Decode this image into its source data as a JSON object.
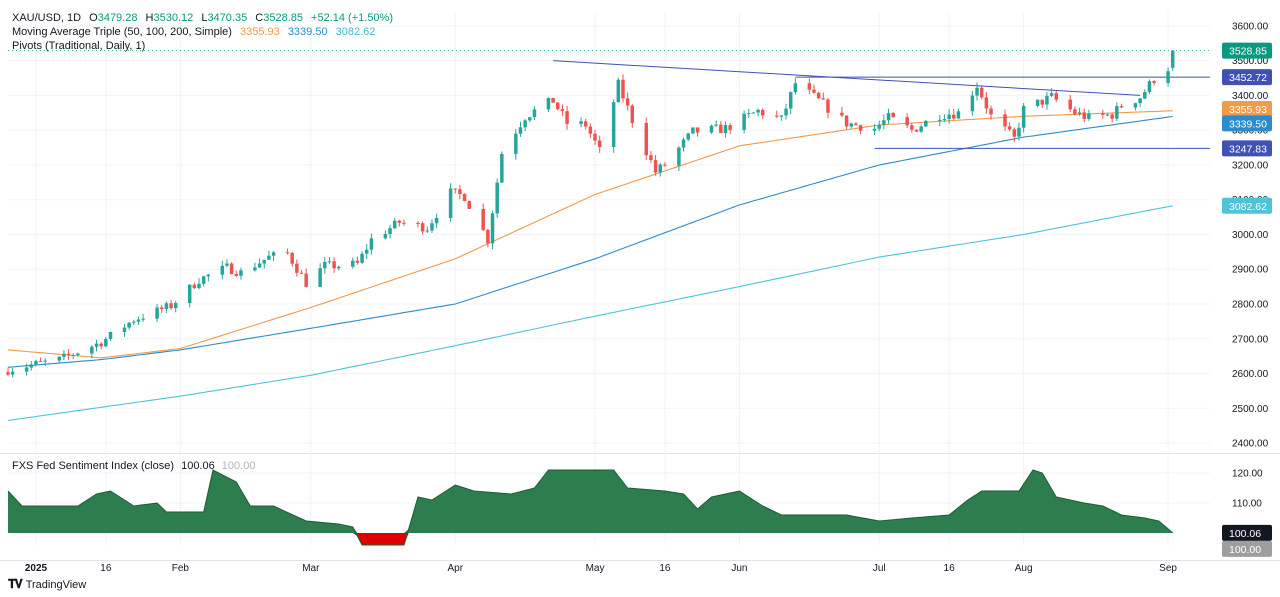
{
  "header": {
    "symbol": "XAU/USD, 1D",
    "o_label": "O",
    "o_value": "3479.28",
    "h_label": "H",
    "h_value": "3530.12",
    "l_label": "L",
    "l_value": "3470.35",
    "c_label": "C",
    "c_value": "3528.85",
    "change": "+52.14 (+1.50%)",
    "ma_title": "Moving Average Triple (50, 100, 200, Simple)",
    "ma50_value": "3355.93",
    "ma100_value": "3339.50",
    "ma200_value": "3082.62",
    "pivots_title": "Pivots (Traditional, Daily, 1)"
  },
  "subpanel": {
    "title": "FXS Fed Sentiment Index (close)",
    "value": "100.06",
    "ghost_value": "100.00"
  },
  "brand": {
    "name": "TradingView",
    "icon": "tradingview-logo-icon"
  },
  "colors": {
    "up": "#26a69a",
    "down": "#ef5350",
    "ma50": "#f2994a",
    "ma100": "#2b8ccc",
    "ma200": "#4fc3d9",
    "trendline": "#3f51b5",
    "sentiment_fill": "#2e7d4f",
    "sentiment_neg": "#e00000",
    "last_price": "#089981"
  },
  "price_labels": {
    "last": "3528.85",
    "resistance": "3452.72",
    "ma50": "3355.93",
    "ma100": "3339.50",
    "support": "3247.83",
    "ma200": "3082.62"
  },
  "chart_data": [
    {
      "type": "candlestick",
      "title": "XAU/USD, 1D",
      "ylim": [
        2380,
        3640
      ],
      "y_ticks": [
        2400,
        2500,
        2600,
        2700,
        2800,
        2900,
        3000,
        3100,
        3200,
        3300,
        3400,
        3500,
        3600
      ],
      "y_tick_labels": [
        "2400.00",
        "2500.00",
        "2600.00",
        "2700.00",
        "2800.00",
        "2900.00",
        "3000.00",
        "3100.00",
        "3200.00",
        "3300.00",
        "3400.00",
        "3500.00",
        "3600.00"
      ],
      "x_range": [
        "2024-12-26",
        "2025-09-10"
      ],
      "x_ticks": [
        "2025-01-01",
        "2025-01-16",
        "2025-02-01",
        "2025-03-01",
        "2025-04-01",
        "2025-05-01",
        "2025-05-16",
        "2025-06-01",
        "2025-07-01",
        "2025-07-16",
        "2025-08-01",
        "2025-09-01"
      ],
      "x_tick_labels": [
        "2025",
        "16",
        "Feb",
        "Mar",
        "Apr",
        "May",
        "16",
        "Jun",
        "Jul",
        "16",
        "Aug",
        "Sep"
      ],
      "close_anchors": [
        [
          "2024-12-26",
          2610
        ],
        [
          "2024-12-31",
          2625
        ],
        [
          "2025-01-06",
          2640
        ],
        [
          "2025-01-15",
          2690
        ],
        [
          "2025-01-22",
          2755
        ],
        [
          "2025-01-30",
          2795
        ],
        [
          "2025-02-05",
          2870
        ],
        [
          "2025-02-11",
          2905
        ],
        [
          "2025-02-14",
          2890
        ],
        [
          "2025-02-20",
          2935
        ],
        [
          "2025-02-24",
          2945
        ],
        [
          "2025-02-28",
          2860
        ],
        [
          "2025-03-04",
          2910
        ],
        [
          "2025-03-07",
          2910
        ],
        [
          "2025-03-11",
          2915
        ],
        [
          "2025-03-14",
          2985
        ],
        [
          "2025-03-20",
          3035
        ],
        [
          "2025-03-26",
          3020
        ],
        [
          "2025-03-31",
          3120
        ],
        [
          "2025-04-03",
          3110
        ],
        [
          "2025-04-08",
          2985
        ],
        [
          "2025-04-11",
          3235
        ],
        [
          "2025-04-16",
          3340
        ],
        [
          "2025-04-22",
          3385
        ],
        [
          "2025-04-25",
          3320
        ],
        [
          "2025-04-29",
          3315
        ],
        [
          "2025-05-02",
          3240
        ],
        [
          "2025-05-06",
          3430
        ],
        [
          "2025-05-09",
          3330
        ],
        [
          "2025-05-14",
          3180
        ],
        [
          "2025-05-16",
          3200
        ],
        [
          "2025-05-22",
          3295
        ],
        [
          "2025-05-29",
          3305
        ],
        [
          "2025-06-05",
          3355
        ],
        [
          "2025-06-10",
          3330
        ],
        [
          "2025-06-13",
          3435
        ],
        [
          "2025-06-18",
          3385
        ],
        [
          "2025-06-24",
          3320
        ],
        [
          "2025-06-30",
          3305
        ],
        [
          "2025-07-03",
          3335
        ],
        [
          "2025-07-08",
          3300
        ],
        [
          "2025-07-14",
          3345
        ],
        [
          "2025-07-18",
          3350
        ],
        [
          "2025-07-22",
          3430
        ],
        [
          "2025-07-25",
          3340
        ],
        [
          "2025-07-30",
          3275
        ],
        [
          "2025-08-01",
          3360
        ],
        [
          "2025-08-07",
          3395
        ],
        [
          "2025-08-12",
          3350
        ],
        [
          "2025-08-15",
          3335
        ],
        [
          "2025-08-20",
          3345
        ],
        [
          "2025-08-22",
          3370
        ],
        [
          "2025-08-26",
          3395
        ],
        [
          "2025-08-29",
          3448
        ],
        [
          "2025-09-01",
          3479.28
        ],
        [
          "2025-09-02",
          3528.85
        ]
      ],
      "last_bar": {
        "date": "2025-09-02",
        "open": 3479.28,
        "high": 3530.12,
        "low": 3470.35,
        "close": 3528.85
      },
      "series": [
        {
          "name": "SMA 50",
          "values": [
            [
              "2024-12-26",
              2668
            ],
            [
              "2025-01-15",
              2645
            ],
            [
              "2025-02-01",
              2672
            ],
            [
              "2025-03-01",
              2790
            ],
            [
              "2025-04-01",
              2930
            ],
            [
              "2025-05-01",
              3115
            ],
            [
              "2025-06-01",
              3255
            ],
            [
              "2025-07-01",
              3315
            ],
            [
              "2025-08-01",
              3340
            ],
            [
              "2025-09-02",
              3355.93
            ]
          ]
        },
        {
          "name": "SMA 100",
          "values": [
            [
              "2024-12-26",
              2618
            ],
            [
              "2025-01-15",
              2640
            ],
            [
              "2025-02-01",
              2668
            ],
            [
              "2025-03-01",
              2730
            ],
            [
              "2025-04-01",
              2800
            ],
            [
              "2025-05-01",
              2930
            ],
            [
              "2025-06-01",
              3085
            ],
            [
              "2025-07-01",
              3200
            ],
            [
              "2025-08-01",
              3280
            ],
            [
              "2025-09-02",
              3339.5
            ]
          ]
        },
        {
          "name": "SMA 200",
          "values": [
            [
              "2024-12-26",
              2465
            ],
            [
              "2025-02-01",
              2535
            ],
            [
              "2025-03-01",
              2595
            ],
            [
              "2025-04-01",
              2680
            ],
            [
              "2025-05-01",
              2765
            ],
            [
              "2025-06-01",
              2850
            ],
            [
              "2025-07-01",
              2935
            ],
            [
              "2025-08-01",
              3000
            ],
            [
              "2025-09-02",
              3082.62
            ]
          ]
        }
      ],
      "trendlines": [
        {
          "name": "descending-trendline",
          "points": [
            [
              "2025-04-22",
              3500
            ],
            [
              "2025-08-26",
              3400
            ]
          ]
        },
        {
          "name": "resistance-line",
          "points": [
            [
              "2025-06-13",
              3452.72
            ],
            [
              "2025-09-10",
              3452.72
            ]
          ]
        },
        {
          "name": "support-line",
          "points": [
            [
              "2025-06-30",
              3247.83
            ],
            [
              "2025-09-10",
              3247.83
            ]
          ]
        }
      ],
      "dotted_last_price": 3528.85
    },
    {
      "type": "area",
      "title": "FXS Fed Sentiment Index (close)",
      "ylim": [
        96,
        125
      ],
      "baseline": 100,
      "y_ticks": [
        110,
        120
      ],
      "y_tick_labels": [
        "110.00",
        "120.00"
      ],
      "points": [
        [
          "2024-12-26",
          114
        ],
        [
          "2024-12-29",
          109
        ],
        [
          "2025-01-10",
          109
        ],
        [
          "2025-01-14",
          113
        ],
        [
          "2025-01-17",
          114
        ],
        [
          "2025-01-22",
          109
        ],
        [
          "2025-01-27",
          110
        ],
        [
          "2025-01-29",
          107
        ],
        [
          "2025-02-06",
          107
        ],
        [
          "2025-02-08",
          121
        ],
        [
          "2025-02-13",
          117
        ],
        [
          "2025-02-16",
          109
        ],
        [
          "2025-02-21",
          109
        ],
        [
          "2025-02-28",
          104
        ],
        [
          "2025-03-07",
          103
        ],
        [
          "2025-03-10",
          102
        ],
        [
          "2025-03-12",
          96
        ],
        [
          "2025-03-21",
          96
        ],
        [
          "2025-03-24",
          112
        ],
        [
          "2025-03-27",
          111
        ],
        [
          "2025-04-01",
          116
        ],
        [
          "2025-04-05",
          114
        ],
        [
          "2025-04-13",
          113
        ],
        [
          "2025-04-18",
          115
        ],
        [
          "2025-04-21",
          121
        ],
        [
          "2025-05-01",
          121
        ],
        [
          "2025-05-05",
          121
        ],
        [
          "2025-05-08",
          115
        ],
        [
          "2025-05-16",
          114
        ],
        [
          "2025-05-20",
          113
        ],
        [
          "2025-05-23",
          108
        ],
        [
          "2025-05-26",
          112
        ],
        [
          "2025-06-01",
          114
        ],
        [
          "2025-06-06",
          109
        ],
        [
          "2025-06-10",
          106
        ],
        [
          "2025-06-20",
          106
        ],
        [
          "2025-06-24",
          106
        ],
        [
          "2025-07-01",
          104
        ],
        [
          "2025-07-08",
          105
        ],
        [
          "2025-07-16",
          106
        ],
        [
          "2025-07-20",
          111
        ],
        [
          "2025-07-23",
          114
        ],
        [
          "2025-07-31",
          114
        ],
        [
          "2025-08-03",
          121
        ],
        [
          "2025-08-05",
          120
        ],
        [
          "2025-08-08",
          112
        ],
        [
          "2025-08-14",
          110
        ],
        [
          "2025-08-18",
          109
        ],
        [
          "2025-08-22",
          106
        ],
        [
          "2025-08-27",
          105
        ],
        [
          "2025-08-30",
          104
        ],
        [
          "2025-09-02",
          100.06
        ]
      ]
    }
  ]
}
